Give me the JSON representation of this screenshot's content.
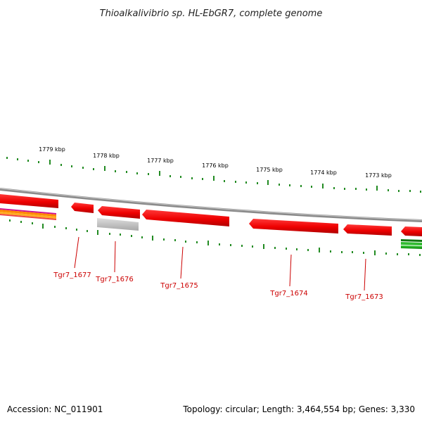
{
  "title": "Thioalkalivibrio sp. HL-EbGR7, complete genome",
  "ticks": [
    "1779 kbp",
    "1778 kbp",
    "1777 kbp",
    "1776 kbp",
    "1775 kbp",
    "1774 kbp",
    "1773 kbp"
  ],
  "genes": [
    "Tgr7_1677",
    "Tgr7_1676",
    "Tgr7_1675",
    "Tgr7_1674",
    "Tgr7_1673"
  ],
  "footer": {
    "accession": "Accession: NC_011901",
    "info": "Topology: circular; Length: 3,464,554 bp; Genes: 3,330"
  },
  "colors": {
    "cds": "#ff0000",
    "pseudo": "#bbbbbb",
    "backbone": "#888888",
    "ticks": "#228b22",
    "label": "#cc0000"
  }
}
